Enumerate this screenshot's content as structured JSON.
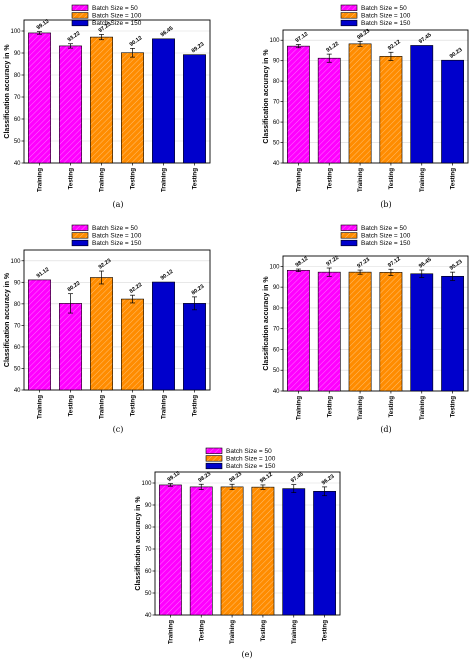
{
  "colors": {
    "batch50": "#ff00ff",
    "batch100": "#ff8c00",
    "batch150": "#0000cc",
    "hatch": "#ffffff"
  },
  "legend": [
    "Batch Size = 50",
    "Batch Size = 100",
    "Batch Size = 150"
  ],
  "chart_data": [
    {
      "type": "bar",
      "panel_label": "(a)",
      "ylabel": "Classification accuracy in %",
      "ylim": [
        40,
        105
      ],
      "yticks": [
        40,
        50,
        60,
        70,
        80,
        90,
        100
      ],
      "grid": true,
      "categories": [
        "Training",
        "Testing",
        "Training",
        "Testing",
        "Training",
        "Testing"
      ],
      "values": [
        99.12,
        93.22,
        97.23,
        90.12,
        96.45,
        89.23
      ],
      "labels": [
        "99.12",
        "93.22",
        "97.23",
        "90.12",
        "96.45",
        "89.23"
      ],
      "errors": [
        0.6,
        1.0,
        1.2,
        2.0,
        0,
        0
      ],
      "groups": [
        "batch50",
        "batch50",
        "batch100",
        "batch100",
        "batch150",
        "batch150"
      ],
      "legend_position": "top-center"
    },
    {
      "type": "bar",
      "panel_label": "(b)",
      "ylabel": "Classification accuracy in %",
      "ylim": [
        40,
        105
      ],
      "yticks": [
        40,
        50,
        60,
        70,
        80,
        90,
        100
      ],
      "grid": true,
      "categories": [
        "Training",
        "Testing",
        "Training",
        "Testing",
        "Training",
        "Testing"
      ],
      "values": [
        97.12,
        91.22,
        98.23,
        92.12,
        97.45,
        90.23
      ],
      "labels": [
        "97.12",
        "91.22",
        "98.23",
        "92.12",
        "97.45",
        "90.23"
      ],
      "errors": [
        0.8,
        2.0,
        1.2,
        2.0,
        0,
        0
      ],
      "groups": [
        "batch50",
        "batch50",
        "batch100",
        "batch100",
        "batch150",
        "batch150"
      ],
      "legend_position": "top-center"
    },
    {
      "type": "bar",
      "panel_label": "(c)",
      "ylabel": "Classification accuracy in %",
      "ylim": [
        40,
        105
      ],
      "yticks": [
        40,
        50,
        60,
        70,
        80,
        90,
        100
      ],
      "grid": true,
      "categories": [
        "Training",
        "Testing",
        "Training",
        "Testing",
        "Training",
        "Testing"
      ],
      "values": [
        91.12,
        80.22,
        92.23,
        82.22,
        90.12,
        80.23
      ],
      "labels": [
        "91.12",
        "80.22",
        "92.23",
        "82.22",
        "90.12",
        "80.23"
      ],
      "errors": [
        0,
        4.5,
        3.0,
        1.8,
        0,
        3.0
      ],
      "groups": [
        "batch50",
        "batch50",
        "batch100",
        "batch100",
        "batch150",
        "batch150"
      ],
      "legend_position": "top-center"
    },
    {
      "type": "bar",
      "panel_label": "(d)",
      "ylabel": "Classification accuracy in %",
      "ylim": [
        40,
        105
      ],
      "yticks": [
        40,
        50,
        60,
        70,
        80,
        90,
        100
      ],
      "grid": true,
      "categories": [
        "Training",
        "Testing",
        "Training",
        "Testing",
        "Training",
        "Testing"
      ],
      "values": [
        98.12,
        97.22,
        97.23,
        97.12,
        96.45,
        95.23
      ],
      "labels": [
        "98.12",
        "97.22",
        "97.23",
        "97.12",
        "96.45",
        "95.23"
      ],
      "errors": [
        0.6,
        2.0,
        1.0,
        1.5,
        1.8,
        2.0
      ],
      "groups": [
        "batch50",
        "batch50",
        "batch100",
        "batch100",
        "batch150",
        "batch150"
      ],
      "legend_position": "top-center"
    },
    {
      "type": "bar",
      "panel_label": "(e)",
      "ylabel": "Classification accuracy in %",
      "ylim": [
        40,
        105
      ],
      "yticks": [
        40,
        50,
        60,
        70,
        80,
        90,
        100
      ],
      "grid": true,
      "categories": [
        "Training",
        "Testing",
        "Training",
        "Testing",
        "Training",
        "Testing"
      ],
      "values": [
        99.12,
        98.23,
        98.23,
        98.12,
        97.45,
        96.23
      ],
      "labels": [
        "99.12",
        "98.23",
        "98.23",
        "98.12",
        "97.45",
        "96.23"
      ],
      "errors": [
        0.6,
        1.2,
        1.2,
        1.0,
        1.8,
        2.0
      ],
      "groups": [
        "batch50",
        "batch50",
        "batch100",
        "batch100",
        "batch150",
        "batch150"
      ],
      "legend_position": "top-center"
    }
  ]
}
